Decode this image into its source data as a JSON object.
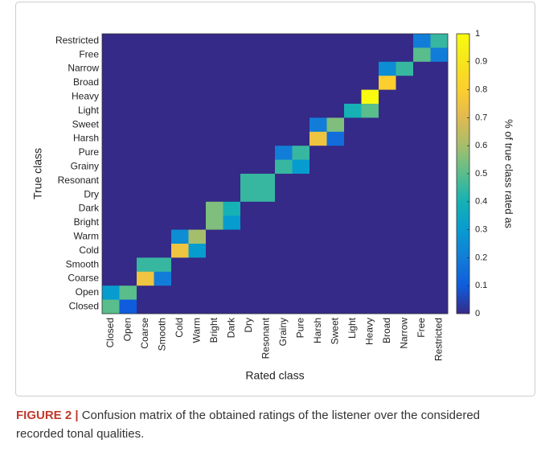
{
  "chart_data": {
    "type": "heatmap",
    "x_label": "Rated class",
    "y_label": "True class",
    "colorbar_label": "% of true class rated as",
    "x_categories": [
      "Closed",
      "Open",
      "Coarse",
      "Smooth",
      "Cold",
      "Warm",
      "Bright",
      "Dark",
      "Dry",
      "Resonant",
      "Grainy",
      "Pure",
      "Harsh",
      "Sweet",
      "Light",
      "Heavy",
      "Broad",
      "Narrow",
      "Free",
      "Restricted"
    ],
    "y_categories": [
      "Restricted",
      "Free",
      "Narrow",
      "Broad",
      "Heavy",
      "Light",
      "Sweet",
      "Harsh",
      "Pure",
      "Grainy",
      "Resonant",
      "Dry",
      "Dark",
      "Bright",
      "Warm",
      "Cold",
      "Smooth",
      "Coarse",
      "Open",
      "Closed"
    ],
    "z": [
      [
        0,
        0,
        0,
        0,
        0,
        0,
        0,
        0,
        0,
        0,
        0,
        0,
        0,
        0,
        0,
        0,
        0,
        0,
        0.2,
        0.45
      ],
      [
        0,
        0,
        0,
        0,
        0,
        0,
        0,
        0,
        0,
        0,
        0,
        0,
        0,
        0,
        0,
        0,
        0,
        0,
        0.5,
        0.2
      ],
      [
        0,
        0,
        0,
        0,
        0,
        0,
        0,
        0,
        0,
        0,
        0,
        0,
        0,
        0,
        0,
        0,
        0.25,
        0.45,
        0,
        0
      ],
      [
        0,
        0,
        0,
        0,
        0,
        0,
        0,
        0,
        0,
        0,
        0,
        0,
        0,
        0,
        0,
        0,
        0.8,
        0,
        0,
        0
      ],
      [
        0,
        0,
        0,
        0,
        0,
        0,
        0,
        0,
        0,
        0,
        0,
        0,
        0,
        0,
        0,
        1,
        0,
        0,
        0,
        0
      ],
      [
        0,
        0,
        0,
        0,
        0,
        0,
        0,
        0,
        0,
        0,
        0,
        0,
        0,
        0,
        0.4,
        0.5,
        0,
        0,
        0,
        0
      ],
      [
        0,
        0,
        0,
        0,
        0,
        0,
        0,
        0,
        0,
        0,
        0,
        0,
        0.2,
        0.55,
        0,
        0,
        0,
        0,
        0,
        0
      ],
      [
        0,
        0,
        0,
        0,
        0,
        0,
        0,
        0,
        0,
        0,
        0,
        0,
        0.75,
        0.15,
        0,
        0,
        0,
        0,
        0,
        0
      ],
      [
        0,
        0,
        0,
        0,
        0,
        0,
        0,
        0,
        0,
        0,
        0.2,
        0.45,
        0,
        0,
        0,
        0,
        0,
        0,
        0,
        0
      ],
      [
        0,
        0,
        0,
        0,
        0,
        0,
        0,
        0,
        0,
        0,
        0.45,
        0.3,
        0,
        0,
        0,
        0,
        0,
        0,
        0,
        0
      ],
      [
        0,
        0,
        0,
        0,
        0,
        0,
        0,
        0,
        0.45,
        0.45,
        0,
        0,
        0,
        0,
        0,
        0,
        0,
        0,
        0,
        0
      ],
      [
        0,
        0,
        0,
        0,
        0,
        0,
        0,
        0,
        0.45,
        0.45,
        0,
        0,
        0,
        0,
        0,
        0,
        0,
        0,
        0,
        0
      ],
      [
        0,
        0,
        0,
        0,
        0,
        0,
        0.55,
        0.4,
        0,
        0,
        0,
        0,
        0,
        0,
        0,
        0,
        0,
        0,
        0,
        0
      ],
      [
        0,
        0,
        0,
        0,
        0,
        0,
        0.55,
        0.3,
        0,
        0,
        0,
        0,
        0,
        0,
        0,
        0,
        0,
        0,
        0,
        0
      ],
      [
        0,
        0,
        0,
        0,
        0.25,
        0.6,
        0,
        0,
        0,
        0,
        0,
        0,
        0,
        0,
        0,
        0,
        0,
        0,
        0,
        0
      ],
      [
        0,
        0,
        0,
        0,
        0.75,
        0.3,
        0,
        0,
        0,
        0,
        0,
        0,
        0,
        0,
        0,
        0,
        0,
        0,
        0,
        0
      ],
      [
        0,
        0,
        0.45,
        0.45,
        0,
        0,
        0,
        0,
        0,
        0,
        0,
        0,
        0,
        0,
        0,
        0,
        0,
        0,
        0,
        0
      ],
      [
        0,
        0,
        0.75,
        0.2,
        0,
        0,
        0,
        0,
        0,
        0,
        0,
        0,
        0,
        0,
        0,
        0,
        0,
        0,
        0,
        0
      ],
      [
        0.3,
        0.5,
        0,
        0,
        0,
        0,
        0,
        0,
        0,
        0,
        0,
        0,
        0,
        0,
        0,
        0,
        0,
        0,
        0,
        0
      ],
      [
        0.5,
        0.1,
        0,
        0,
        0,
        0,
        0,
        0,
        0,
        0,
        0,
        0,
        0,
        0,
        0,
        0,
        0,
        0,
        0,
        0
      ]
    ],
    "clim": [
      0,
      1
    ],
    "cticks": [
      0,
      0.1,
      0.2,
      0.3,
      0.4,
      0.5,
      0.6,
      0.7,
      0.8,
      0.9,
      1
    ]
  },
  "caption": {
    "label": "FIGURE 2 |",
    "text": "Confusion matrix of the obtained ratings of the listener over the considered recorded tonal qualities."
  }
}
